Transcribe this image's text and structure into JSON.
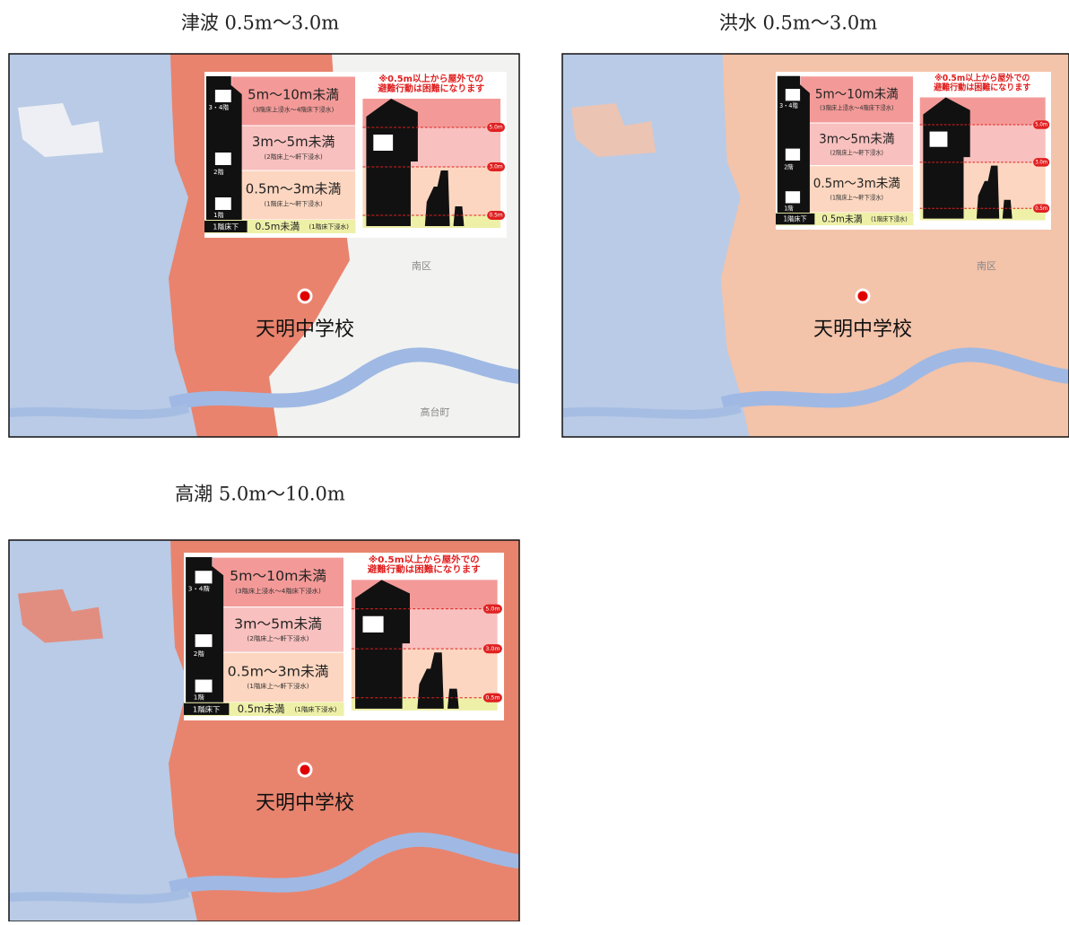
{
  "panels": [
    {
      "title": "津波 0.5m～3.0m",
      "place": "天明中学校",
      "map_labels": [
        "南区",
        "高台町"
      ]
    },
    {
      "title": "洪水 0.5m～3.0m",
      "place": "天明中学校",
      "map_labels": [
        "南区"
      ]
    },
    {
      "title": "高潮 5.0m～10.0m",
      "place": "天明中学校",
      "map_labels": []
    }
  ],
  "legend": {
    "floors": [
      "3・4階",
      "2階",
      "1階",
      "1階床下"
    ],
    "rows": [
      {
        "label": "5m～10m未満",
        "sub": "(3階床上浸水～4階床下浸水)"
      },
      {
        "label": "3m～5m未満",
        "sub": "(2階床上～軒下浸水)"
      },
      {
        "label": "0.5m～3m未満",
        "sub": "(1階床上～軒下浸水)"
      }
    ],
    "bottom_label": "0.5m未満",
    "bottom_sub": "(1階床下浸水)",
    "note": [
      "※0.5m以上から屋外での",
      "避難行動は困難になります"
    ],
    "marks": [
      "5.0m",
      "3.0m",
      "0.5m"
    ]
  }
}
